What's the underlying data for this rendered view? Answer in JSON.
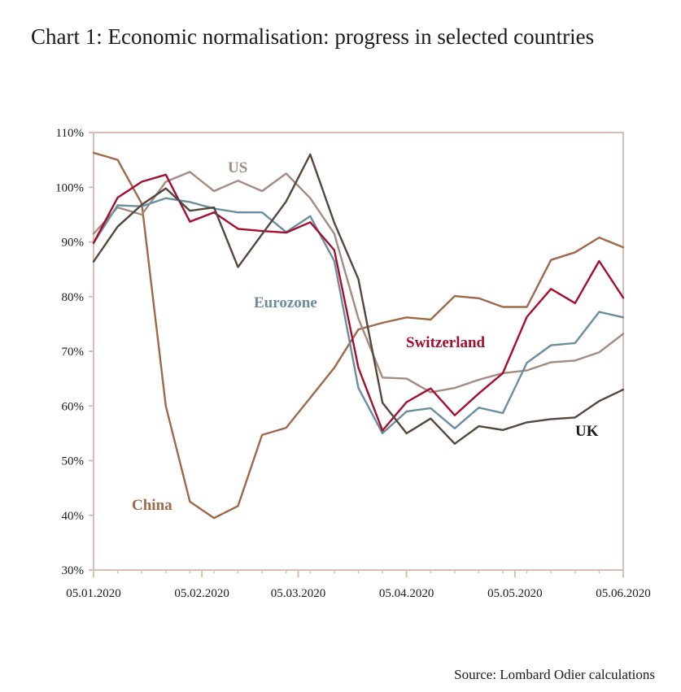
{
  "title": "Chart 1: Economic normalisation: progress in selected countries",
  "source": "Source: Lombard Odier calculations",
  "chart_data": {
    "type": "line",
    "ylim": [
      30,
      110
    ],
    "y_ticks": [
      110,
      100,
      90,
      80,
      70,
      60,
      50,
      40,
      30
    ],
    "y_tick_labels": [
      "110%",
      "100%",
      "90%",
      "80%",
      "70%",
      "60%",
      "50%",
      "40%",
      "30%"
    ],
    "x_tick_labels": [
      "05.01.2020",
      "05.02.2020",
      "05.03.2020",
      "05.04.2020",
      "05.05.2020",
      "05.06.2020"
    ],
    "x_tick_index": [
      0,
      4.5,
      8.5,
      13,
      17.5,
      22
    ],
    "grid": false,
    "legend": "inline labels",
    "series": [
      {
        "name": "China",
        "color": "#a0684a",
        "values": [
          106.3,
          105,
          97,
          60,
          42.5,
          39.5,
          41.7,
          54.7,
          56,
          61.5,
          67,
          74,
          75.2,
          76.2,
          75.8,
          80.1,
          79.7,
          78.1,
          78.1,
          86.7,
          88.1,
          90.8,
          89
        ]
      },
      {
        "name": "US",
        "color": "#a38b82",
        "values": [
          91.5,
          96.3,
          95,
          101,
          102.8,
          99.3,
          101.2,
          99.3,
          102.5,
          98,
          91.5,
          76,
          65.2,
          65,
          62.5,
          63.3,
          64.8,
          66,
          66.5,
          68,
          68.3,
          69.8,
          73.2
        ]
      },
      {
        "name": "Eurozone",
        "color": "#6b8da0",
        "values": [
          89.8,
          96.7,
          96.5,
          98,
          97.3,
          96.1,
          95.4,
          95.4,
          91.8,
          94.7,
          86.5,
          63.3,
          55,
          59,
          59.6,
          55.9,
          59.7,
          58.7,
          67.9,
          71.1,
          71.5,
          77.2,
          76.2
        ]
      },
      {
        "name": "Switzerland",
        "color": "#a50e2d",
        "values": [
          89.8,
          98.1,
          101,
          102.3,
          93.7,
          95.4,
          92.4,
          92,
          91.7,
          93.6,
          88.5,
          67,
          55.5,
          60.7,
          63.2,
          58.3,
          62.3,
          66,
          76.3,
          81.4,
          78.8,
          86.5,
          79.8
        ]
      },
      {
        "name": "UK",
        "color": "#54463f",
        "values": [
          86.4,
          92.8,
          96.8,
          99.8,
          95.7,
          96.3,
          85.4,
          91.4,
          97.4,
          106,
          93.5,
          83.2,
          60.6,
          55,
          57.7,
          53.1,
          56.3,
          55.6,
          57,
          57.6,
          57.9,
          60.9,
          63
        ]
      }
    ],
    "series_label_text": [
      "US",
      "Eurozone",
      "Switzerland",
      "UK",
      "China"
    ]
  }
}
